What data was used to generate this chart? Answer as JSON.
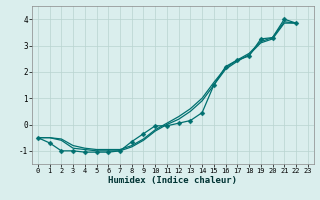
{
  "xlabel": "Humidex (Indice chaleur)",
  "xlim": [
    -0.5,
    23.5
  ],
  "ylim": [
    -1.5,
    4.5
  ],
  "yticks": [
    -1,
    0,
    1,
    2,
    3,
    4
  ],
  "xticks": [
    0,
    1,
    2,
    3,
    4,
    5,
    6,
    7,
    8,
    9,
    10,
    11,
    12,
    13,
    14,
    15,
    16,
    17,
    18,
    19,
    20,
    21,
    22,
    23
  ],
  "bg_color": "#daeeed",
  "grid_color": "#b8d4d0",
  "line_color": "#007070",
  "line1_x": [
    0,
    1,
    2,
    3,
    4,
    5,
    6,
    7,
    8,
    9,
    10,
    11,
    12,
    13,
    14,
    15,
    16,
    17,
    18,
    19,
    20,
    21,
    22
  ],
  "line1_y": [
    -0.5,
    -0.7,
    -1.0,
    -1.0,
    -1.05,
    -1.05,
    -1.05,
    -1.0,
    -0.65,
    -0.35,
    -0.05,
    -0.05,
    0.05,
    0.15,
    0.45,
    1.5,
    2.2,
    2.45,
    2.6,
    3.25,
    3.3,
    4.0,
    3.85
  ],
  "line2_x": [
    0,
    1,
    2,
    3,
    4,
    5,
    6,
    7,
    8,
    9,
    10,
    11,
    12,
    13,
    14,
    15,
    16,
    17,
    18,
    19,
    20,
    21,
    22
  ],
  "line2_y": [
    -0.5,
    -0.5,
    -0.6,
    -0.9,
    -0.95,
    -1.0,
    -1.0,
    -1.0,
    -0.85,
    -0.6,
    -0.25,
    0.0,
    0.2,
    0.5,
    0.9,
    1.5,
    2.1,
    2.4,
    2.65,
    3.1,
    3.25,
    3.85,
    3.85
  ],
  "line3_x": [
    0,
    1,
    2,
    3,
    4,
    5,
    6,
    7,
    8,
    9,
    10,
    11,
    12,
    13,
    14,
    15,
    16,
    17,
    18,
    19,
    20,
    21,
    22
  ],
  "line3_y": [
    -0.5,
    -0.5,
    -0.55,
    -0.8,
    -0.9,
    -0.95,
    -0.95,
    -0.95,
    -0.8,
    -0.55,
    -0.2,
    0.05,
    0.3,
    0.6,
    1.0,
    1.6,
    2.15,
    2.45,
    2.7,
    3.15,
    3.3,
    3.9,
    3.85
  ]
}
